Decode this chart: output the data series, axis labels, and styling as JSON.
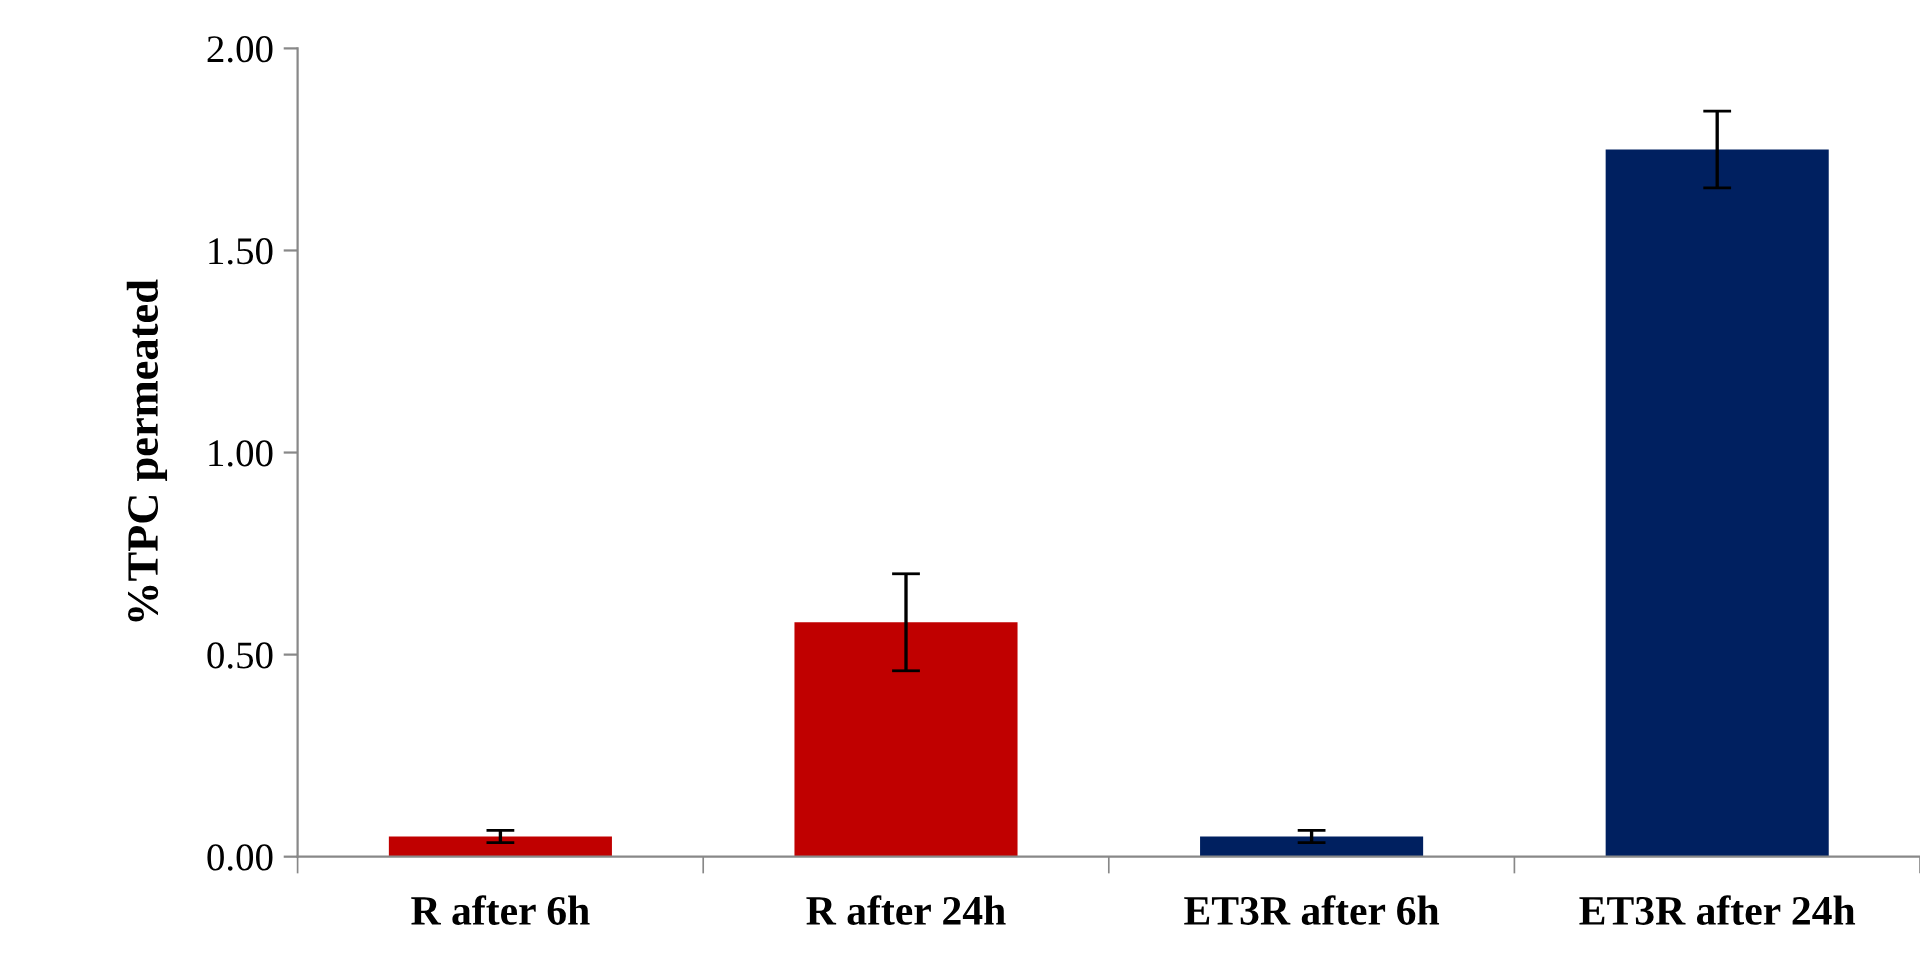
{
  "chart_data": {
    "type": "bar",
    "ylabel": "%TPC permeated",
    "categories": [
      "R after 6h",
      "R after 24h",
      "ET3R after 6h",
      "ET3R after 24h"
    ],
    "values": [
      0.05,
      0.58,
      0.05,
      1.75
    ],
    "errors": [
      0.015,
      0.12,
      0.015,
      0.095
    ],
    "colors": [
      "#c00000",
      "#c00000",
      "#002060",
      "#002060"
    ],
    "ylim": [
      0,
      2.0
    ],
    "yticks": [
      {
        "value": 0,
        "label": "0.00"
      },
      {
        "value": 0.5,
        "label": "0.50"
      },
      {
        "value": 1.0,
        "label": "1.00"
      },
      {
        "value": 1.5,
        "label": "1.50"
      },
      {
        "value": 2.0,
        "label": "2.00"
      }
    ],
    "grid": false
  }
}
